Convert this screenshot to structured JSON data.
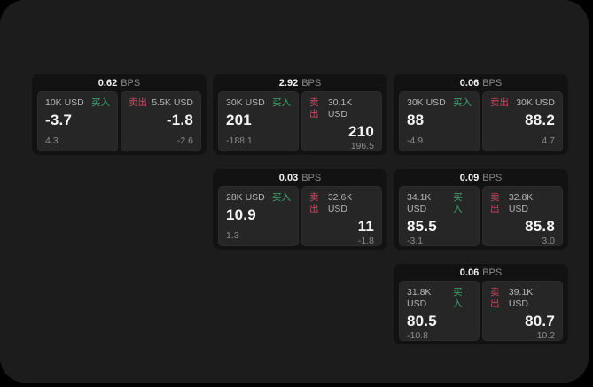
{
  "app": {
    "bps_unit": "BPS",
    "buy_label": "买入",
    "sell_label": "卖出",
    "colors": {
      "outer_background": "#000000",
      "window_background": "#1c1c1c",
      "card_background": "#121212",
      "panel_background": "#262626",
      "buy_accent": "#3fa56b",
      "sell_accent": "#c94a60",
      "price_text": "#f5f5f5",
      "muted_text": "#8c8c8c",
      "label_text": "#b5b5b5"
    }
  },
  "cards": [
    {
      "bps": "0.62",
      "buy": {
        "amount": "10K USD",
        "price": "-3.7",
        "sub": "4.3"
      },
      "sell": {
        "amount": "5.5K USD",
        "price": "-1.8",
        "sub": "-2.6"
      }
    },
    {
      "bps": "2.92",
      "buy": {
        "amount": "30K USD",
        "price": "201",
        "sub": "-188.1"
      },
      "sell": {
        "amount": "30.1K USD",
        "price": "210",
        "sub": "196.5"
      }
    },
    {
      "bps": "0.06",
      "buy": {
        "amount": "30K USD",
        "price": "88",
        "sub": "-4.9"
      },
      "sell": {
        "amount": "30K USD",
        "price": "88.2",
        "sub": "4.7"
      }
    },
    {
      "bps": "0.03",
      "buy": {
        "amount": "28K USD",
        "price": "10.9",
        "sub": "1.3"
      },
      "sell": {
        "amount": "32.6K USD",
        "price": "11",
        "sub": "-1.8"
      }
    },
    {
      "bps": "0.09",
      "buy": {
        "amount": "34.1K USD",
        "price": "85.5",
        "sub": "-3.1"
      },
      "sell": {
        "amount": "32.8K USD",
        "price": "85.8",
        "sub": "3.0"
      }
    },
    {
      "bps": "0.06",
      "buy": {
        "amount": "31.8K USD",
        "price": "80.5",
        "sub": "-10.8"
      },
      "sell": {
        "amount": "39.1K USD",
        "price": "80.7",
        "sub": "10.2"
      }
    }
  ]
}
